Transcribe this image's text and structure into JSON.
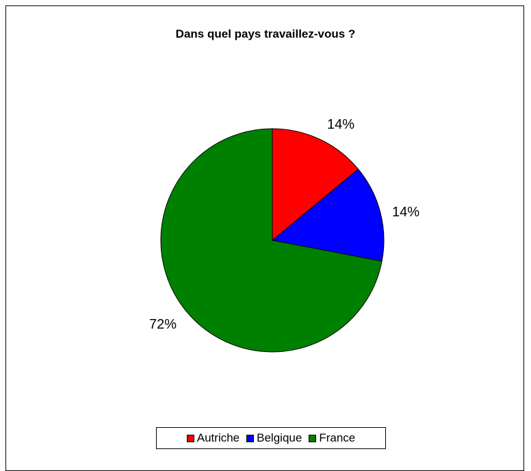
{
  "chart_data": {
    "type": "pie",
    "title": "Dans quel pays travaillez-vous ?",
    "categories": [
      "Autriche",
      "Belgique",
      "France"
    ],
    "values": [
      14,
      14,
      72
    ],
    "labels": [
      "14%",
      "14%",
      "72%"
    ],
    "colors": [
      "#ff0000",
      "#0000ff",
      "#008000"
    ],
    "legend_position": "bottom"
  }
}
